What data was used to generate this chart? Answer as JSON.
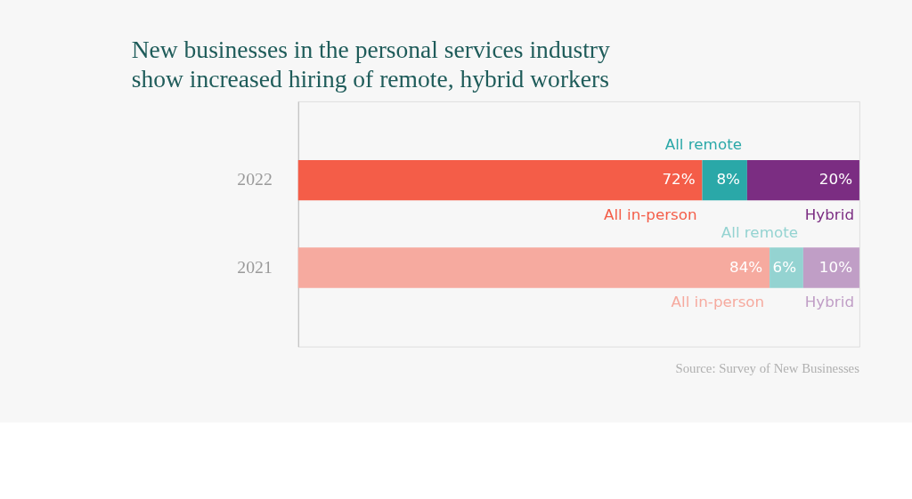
{
  "chart_data": {
    "type": "bar",
    "orientation": "horizontal",
    "stacked": true,
    "title": "New businesses in the personal services industry show increased hiring of remote, hybrid workers",
    "categories": [
      "2022",
      "2021"
    ],
    "series": [
      {
        "name": "All in-person",
        "colors": [
          "#f45d48",
          "#f6aa9f"
        ],
        "values": [
          72,
          84
        ],
        "value_labels": [
          "72%",
          "84%"
        ]
      },
      {
        "name": "All remote",
        "colors": [
          "#2aa8a8",
          "#94d3d1"
        ],
        "values": [
          8,
          6
        ],
        "value_labels": [
          "8%",
          "6%"
        ]
      },
      {
        "name": "Hybrid",
        "colors": [
          "#7b2d82",
          "#c09ec6"
        ],
        "values": [
          20,
          10
        ],
        "value_labels": [
          "20%",
          "10%"
        ]
      }
    ],
    "annotations": [
      "Source: Survey of New Businesses"
    ]
  }
}
